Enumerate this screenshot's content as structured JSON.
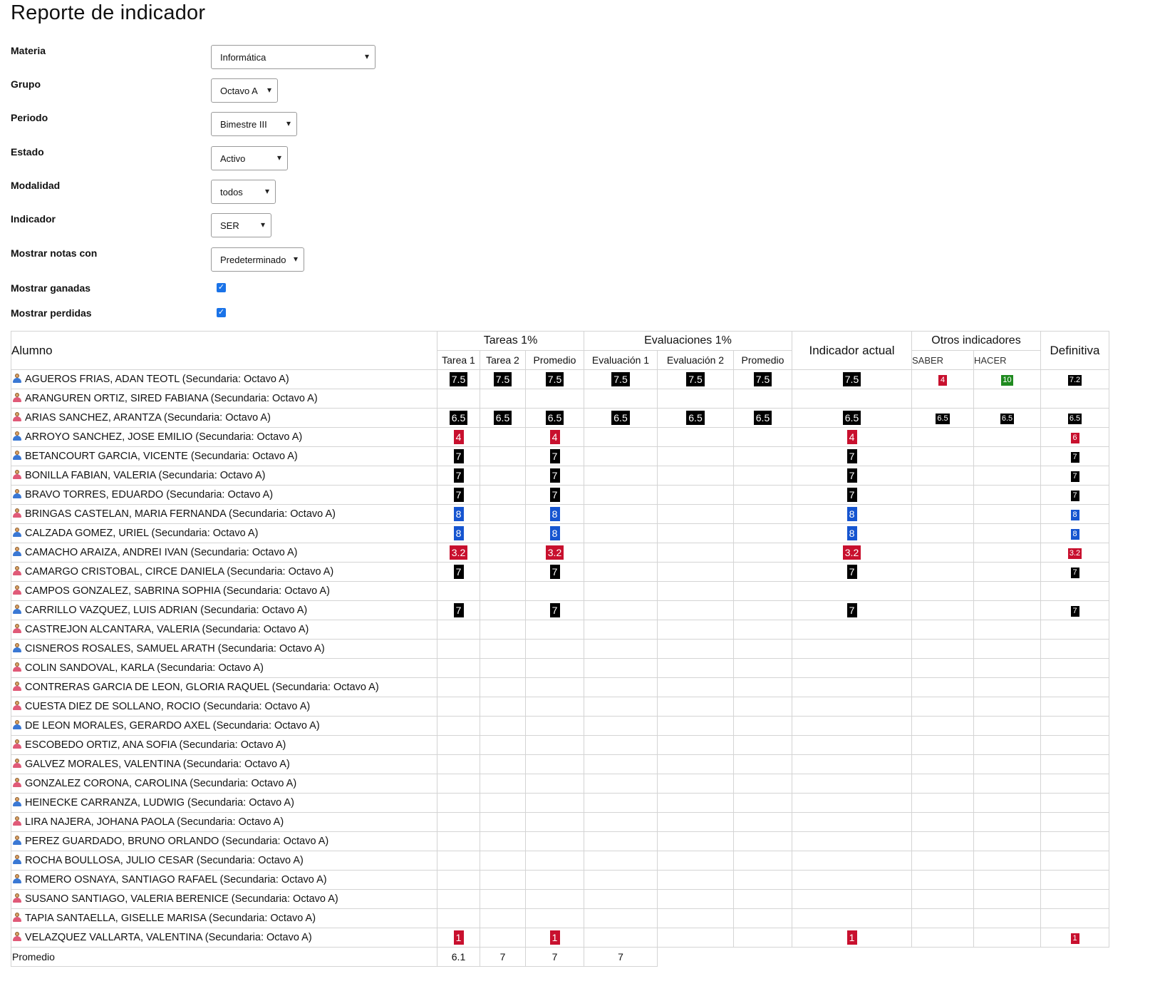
{
  "title": "Reporte de indicador",
  "filters": [
    {
      "label": "Materia",
      "value": "Informática"
    },
    {
      "label": "Grupo",
      "value": "Octavo A"
    },
    {
      "label": "Periodo",
      "value": "Bimestre III"
    },
    {
      "label": "Estado",
      "value": "Activo"
    },
    {
      "label": "Modalidad",
      "value": "todos"
    },
    {
      "label": "Indicador",
      "value": "SER"
    },
    {
      "label": "Mostrar notas con",
      "value": "Predeterminado"
    }
  ],
  "checks": [
    {
      "label": "Mostrar ganadas",
      "checked": true
    },
    {
      "label": "Mostrar perdidas",
      "checked": true
    }
  ],
  "table": {
    "alumno": "Alumno",
    "tareas_group": "Tareas 1%",
    "eval_group": "Evaluaciones 1%",
    "actual": "Indicador actual",
    "otros_group": "Otros indicadores",
    "definitiva": "Definitiva",
    "tarea1": "Tarea 1",
    "tarea2": "Tarea 2",
    "promedio": "Promedio",
    "eval1": "Evaluación 1",
    "eval2": "Evaluación 2",
    "saber": "SABER",
    "hacer": "HACER",
    "promedio_row_label": "Promedio",
    "promedio_row": [
      "6.1",
      "7",
      "7",
      "7"
    ]
  },
  "colors": {
    "black": "#000000",
    "red": "#c8102e",
    "blue": "#1655d0",
    "green": "#1f8a1f"
  },
  "students": [
    {
      "name": "AGUEROS FRIAS, ADAN TEOTL (Secundaria: Octavo A)",
      "g": "m",
      "t1": "7.5",
      "t2": "7.5",
      "tp": "7.5",
      "e1": "7.5",
      "e2": "7.5",
      "ep": "7.5",
      "act": "7.5",
      "saber": "4",
      "hacer": "10",
      "def": "7.2"
    },
    {
      "name": "ARANGUREN ORTIZ, SIRED FABIANA (Secundaria: Octavo A)",
      "g": "f"
    },
    {
      "name": "ARIAS SANCHEZ, ARANTZA (Secundaria: Octavo A)",
      "g": "f",
      "t1": "6.5",
      "t2": "6.5",
      "tp": "6.5",
      "e1": "6.5",
      "e2": "6.5",
      "ep": "6.5",
      "act": "6.5",
      "saber": "6.5",
      "hacer": "6.5",
      "def": "6.5"
    },
    {
      "name": "ARROYO SANCHEZ, JOSE EMILIO (Secundaria: Octavo A)",
      "g": "m",
      "t1": "4",
      "tp": "4",
      "act": "4",
      "def": "6"
    },
    {
      "name": "BETANCOURT GARCIA, VICENTE (Secundaria: Octavo A)",
      "g": "m",
      "t1": "7",
      "tp": "7",
      "act": "7",
      "def": "7"
    },
    {
      "name": "BONILLA FABIAN, VALERIA (Secundaria: Octavo A)",
      "g": "f",
      "t1": "7",
      "tp": "7",
      "act": "7",
      "def": "7"
    },
    {
      "name": "BRAVO TORRES, EDUARDO (Secundaria: Octavo A)",
      "g": "m",
      "t1": "7",
      "tp": "7",
      "act": "7",
      "def": "7"
    },
    {
      "name": "BRINGAS CASTELAN, MARIA FERNANDA (Secundaria: Octavo A)",
      "g": "f",
      "t1": "8",
      "tp": "8",
      "act": "8",
      "def": "8"
    },
    {
      "name": "CALZADA GOMEZ, URIEL (Secundaria: Octavo A)",
      "g": "m",
      "t1": "8",
      "tp": "8",
      "act": "8",
      "def": "8"
    },
    {
      "name": "CAMACHO ARAIZA, ANDREI IVAN (Secundaria: Octavo A)",
      "g": "m",
      "t1": "3.2",
      "tp": "3.2",
      "act": "3.2",
      "def": "3.2"
    },
    {
      "name": "CAMARGO CRISTOBAL, CIRCE DANIELA (Secundaria: Octavo A)",
      "g": "f",
      "t1": "7",
      "tp": "7",
      "act": "7",
      "def": "7"
    },
    {
      "name": "CAMPOS GONZALEZ, SABRINA SOPHIA (Secundaria: Octavo A)",
      "g": "f"
    },
    {
      "name": "CARRILLO VAZQUEZ, LUIS ADRIAN (Secundaria: Octavo A)",
      "g": "m",
      "t1": "7",
      "tp": "7",
      "act": "7",
      "def": "7"
    },
    {
      "name": "CASTREJON ALCANTARA, VALERIA (Secundaria: Octavo A)",
      "g": "f"
    },
    {
      "name": "CISNEROS ROSALES, SAMUEL ARATH (Secundaria: Octavo A)",
      "g": "m"
    },
    {
      "name": "COLIN SANDOVAL, KARLA (Secundaria: Octavo A)",
      "g": "f"
    },
    {
      "name": "CONTRERAS GARCIA DE LEON, GLORIA RAQUEL (Secundaria: Octavo A)",
      "g": "f"
    },
    {
      "name": "CUESTA DIEZ DE SOLLANO, ROCIO (Secundaria: Octavo A)",
      "g": "f"
    },
    {
      "name": "DE LEON MORALES, GERARDO AXEL (Secundaria: Octavo A)",
      "g": "m"
    },
    {
      "name": "ESCOBEDO ORTIZ, ANA SOFIA (Secundaria: Octavo A)",
      "g": "f"
    },
    {
      "name": "GALVEZ MORALES, VALENTINA (Secundaria: Octavo A)",
      "g": "f"
    },
    {
      "name": "GONZALEZ CORONA, CAROLINA (Secundaria: Octavo A)",
      "g": "f"
    },
    {
      "name": "HEINECKE CARRANZA, LUDWIG (Secundaria: Octavo A)",
      "g": "m"
    },
    {
      "name": "LIRA NAJERA, JOHANA PAOLA (Secundaria: Octavo A)",
      "g": "f"
    },
    {
      "name": "PEREZ GUARDADO, BRUNO ORLANDO (Secundaria: Octavo A)",
      "g": "m"
    },
    {
      "name": "ROCHA BOULLOSA, JULIO CESAR (Secundaria: Octavo A)",
      "g": "m"
    },
    {
      "name": "ROMERO OSNAYA, SANTIAGO RAFAEL (Secundaria: Octavo A)",
      "g": "m"
    },
    {
      "name": "SUSANO SANTIAGO, VALERIA BERENICE (Secundaria: Octavo A)",
      "g": "f"
    },
    {
      "name": "TAPIA SANTAELLA, GISELLE MARISA (Secundaria: Octavo A)",
      "g": "f"
    },
    {
      "name": "VELAZQUEZ VALLARTA, VALENTINA (Secundaria: Octavo A)",
      "g": "f",
      "t1": "1",
      "tp": "1",
      "act": "1",
      "def": "1"
    }
  ]
}
